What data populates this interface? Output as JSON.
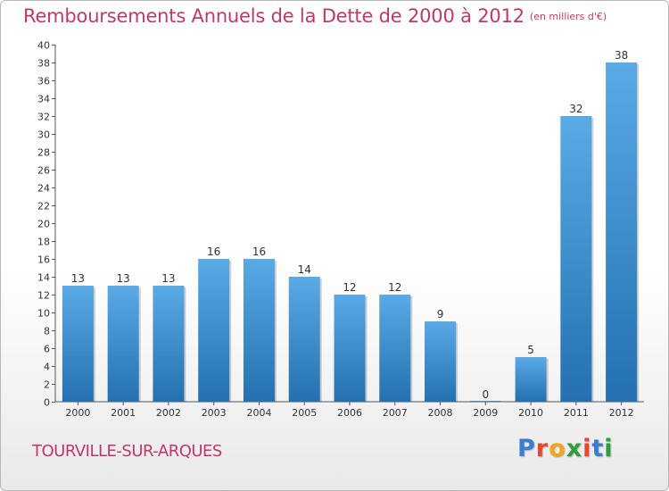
{
  "title": "Remboursements Annuels de la Dette de 2000 à 2012",
  "unit": "(en milliers d'€)",
  "town": "TOURVILLE-SUR-ARQUES",
  "logo": {
    "text": "Proxiti",
    "colors": [
      "#3a7fcf",
      "#e8482f",
      "#f2a51a",
      "#2e9e3a",
      "#e8482f",
      "#3a7fcf",
      "#2e9e3a"
    ]
  },
  "colors": {
    "bar_top": "#5aaae6",
    "bar_bottom": "#2470b0",
    "title": "#c2376b"
  },
  "chart_data": {
    "type": "bar",
    "categories": [
      "2000",
      "2001",
      "2002",
      "2003",
      "2004",
      "2005",
      "2006",
      "2007",
      "2008",
      "2009",
      "2010",
      "2011",
      "2012"
    ],
    "values": [
      13,
      13,
      13,
      16,
      16,
      14,
      12,
      12,
      9,
      0,
      5,
      32,
      38
    ],
    "ylim": [
      0,
      40
    ],
    "yticks": [
      0,
      2,
      4,
      6,
      8,
      10,
      12,
      14,
      16,
      18,
      20,
      22,
      24,
      26,
      28,
      30,
      32,
      34,
      36,
      38,
      40
    ],
    "grid": false,
    "legend": "none"
  }
}
